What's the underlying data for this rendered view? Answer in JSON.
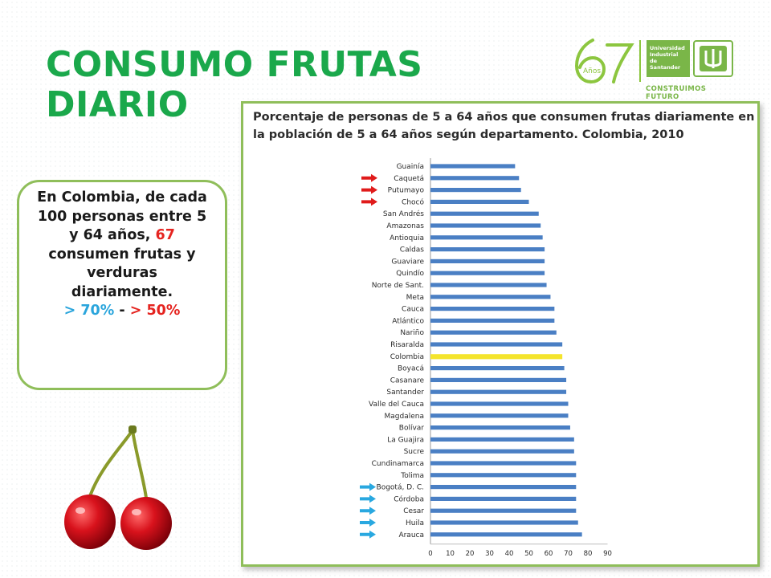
{
  "slide": {
    "title_line1": "CONSUMO FRUTAS",
    "title_line2": "DIARIO"
  },
  "logo": {
    "anniversary": "67",
    "anniversary_word": "Años",
    "university_line1": "Universidad",
    "university_line2": "Industrial de",
    "university_line3": "Santander",
    "tagline": "CONSTRUIMOS FUTURO"
  },
  "callout": {
    "text_before": "En Colombia, de cada 100 personas entre 5 y 64 años,",
    "highlight": "67",
    "text_after": "consumen frutas y verduras diariamente.",
    "legend_blue": "> 70%",
    "legend_sep": "-",
    "legend_red": "> 50%",
    "color_blue": "#2aa5dc",
    "color_red": "#e52420"
  },
  "chart_data": {
    "type": "bar",
    "orientation": "horizontal",
    "title": "Porcentaje de personas de 5 a 64 años que consumen frutas diariamente en la población de 5 a 64 años según departamento. Colombia, 2010",
    "categories": [
      "Guainía",
      "Caquetá",
      "Putumayo",
      "Chocó",
      "San Andrés",
      "Amazonas",
      "Antioquia",
      "Caldas",
      "Guaviare",
      "Quindío",
      "Norte de Sant.",
      "Meta",
      "Cauca",
      "Atlántico",
      "Nariño",
      "Risaralda",
      "Colombia",
      "Boyacá",
      "Casanare",
      "Santander",
      "Valle del Cauca",
      "Magdalena",
      "Bolívar",
      "La Guajira",
      "Sucre",
      "Cundinamarca",
      "Tolima",
      "Bogotá, D. C.",
      "Córdoba",
      "Cesar",
      "Huila",
      "Arauca"
    ],
    "values": [
      43,
      45,
      46,
      50,
      55,
      56,
      57,
      58,
      58,
      58,
      59,
      61,
      63,
      63,
      64,
      67,
      67,
      68,
      69,
      69,
      70,
      70,
      71,
      73,
      73,
      74,
      74,
      74,
      74,
      74,
      75,
      77
    ],
    "highlight_category": "Colombia",
    "bar_color": "#4a7fc4",
    "highlight_color": "#f4e42c",
    "x_ticks": [
      "0",
      "10",
      "20",
      "30",
      "40",
      "50",
      "60",
      "70",
      "80",
      "90"
    ],
    "xlim": [
      0,
      90
    ],
    "grid": false,
    "red_arrow_categories": [
      "Caquetá",
      "Putumayo",
      "Chocó"
    ],
    "blue_arrow_categories": [
      "Bogotá, D. C.",
      "Córdoba",
      "Cesar",
      "Huila",
      "Arauca"
    ],
    "red_arrow_color": "#e01b1b",
    "blue_arrow_color": "#29a8e0"
  }
}
